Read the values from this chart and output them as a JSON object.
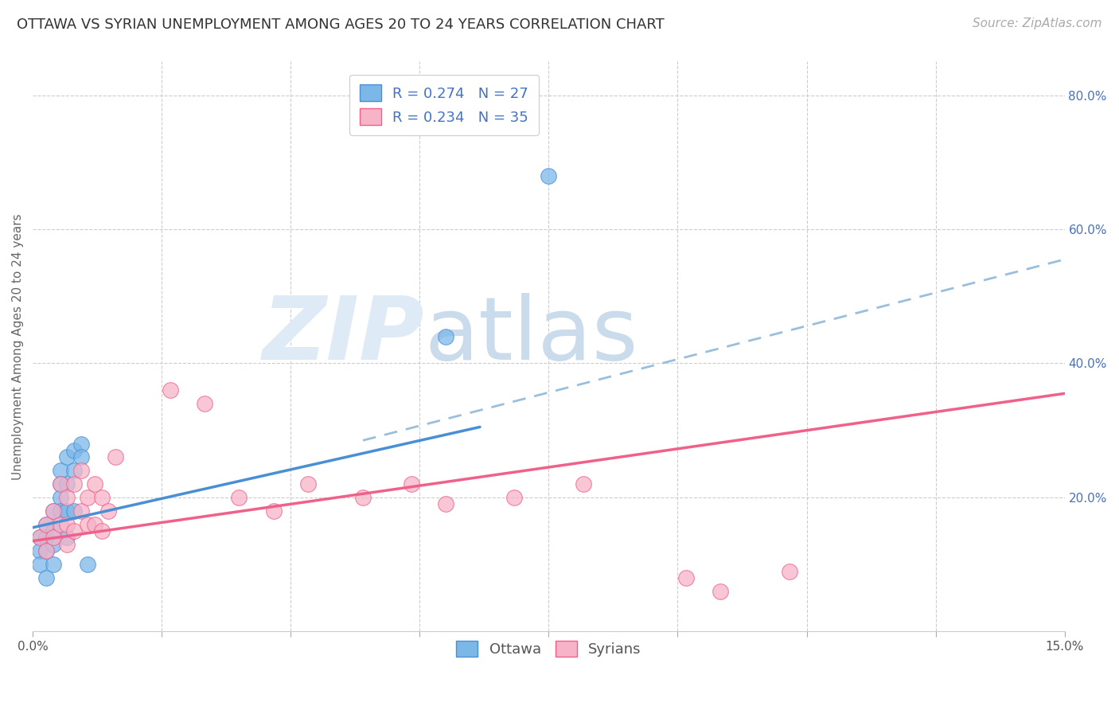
{
  "title": "OTTAWA VS SYRIAN UNEMPLOYMENT AMONG AGES 20 TO 24 YEARS CORRELATION CHART",
  "source": "Source: ZipAtlas.com",
  "ylabel": "Unemployment Among Ages 20 to 24 years",
  "right_yticks": [
    "80.0%",
    "60.0%",
    "40.0%",
    "20.0%"
  ],
  "right_ytick_vals": [
    0.8,
    0.6,
    0.4,
    0.2
  ],
  "ottawa_color": "#7bb8e8",
  "syrians_color": "#f7b3c8",
  "ottawa_line_color": "#4a8fd4",
  "syrians_line_color": "#f0608a",
  "dashed_line_color": "#9abfdd",
  "background_color": "#ffffff",
  "xlim": [
    0.0,
    0.15
  ],
  "ylim": [
    0.0,
    0.85
  ],
  "ottawa_x": [
    0.001,
    0.001,
    0.001,
    0.002,
    0.002,
    0.002,
    0.002,
    0.003,
    0.003,
    0.003,
    0.003,
    0.004,
    0.004,
    0.004,
    0.004,
    0.005,
    0.005,
    0.005,
    0.005,
    0.006,
    0.006,
    0.006,
    0.007,
    0.007,
    0.008,
    0.06,
    0.075
  ],
  "ottawa_y": [
    0.14,
    0.12,
    0.1,
    0.16,
    0.14,
    0.12,
    0.08,
    0.18,
    0.15,
    0.13,
    0.1,
    0.24,
    0.22,
    0.2,
    0.18,
    0.26,
    0.22,
    0.18,
    0.14,
    0.27,
    0.24,
    0.18,
    0.28,
    0.26,
    0.1,
    0.44,
    0.68
  ],
  "syrians_x": [
    0.001,
    0.002,
    0.002,
    0.003,
    0.003,
    0.004,
    0.004,
    0.005,
    0.005,
    0.005,
    0.006,
    0.006,
    0.007,
    0.007,
    0.008,
    0.008,
    0.009,
    0.009,
    0.01,
    0.01,
    0.011,
    0.012,
    0.02,
    0.025,
    0.03,
    0.035,
    0.04,
    0.048,
    0.055,
    0.06,
    0.07,
    0.08,
    0.095,
    0.1,
    0.11
  ],
  "syrians_y": [
    0.14,
    0.16,
    0.12,
    0.18,
    0.14,
    0.22,
    0.16,
    0.2,
    0.16,
    0.13,
    0.22,
    0.15,
    0.24,
    0.18,
    0.2,
    0.16,
    0.22,
    0.16,
    0.2,
    0.15,
    0.18,
    0.26,
    0.36,
    0.34,
    0.2,
    0.18,
    0.22,
    0.2,
    0.22,
    0.19,
    0.2,
    0.22,
    0.08,
    0.06,
    0.09
  ],
  "ottawa_line_x": [
    0.0,
    0.065
  ],
  "ottawa_line_y": [
    0.155,
    0.305
  ],
  "dashed_line_x": [
    0.048,
    0.15
  ],
  "dashed_line_y": [
    0.285,
    0.555
  ],
  "syrians_line_x": [
    0.0,
    0.15
  ],
  "syrians_line_y": [
    0.135,
    0.355
  ],
  "title_fontsize": 13,
  "axis_label_fontsize": 11,
  "tick_fontsize": 11,
  "legend_fontsize": 13,
  "source_fontsize": 11
}
